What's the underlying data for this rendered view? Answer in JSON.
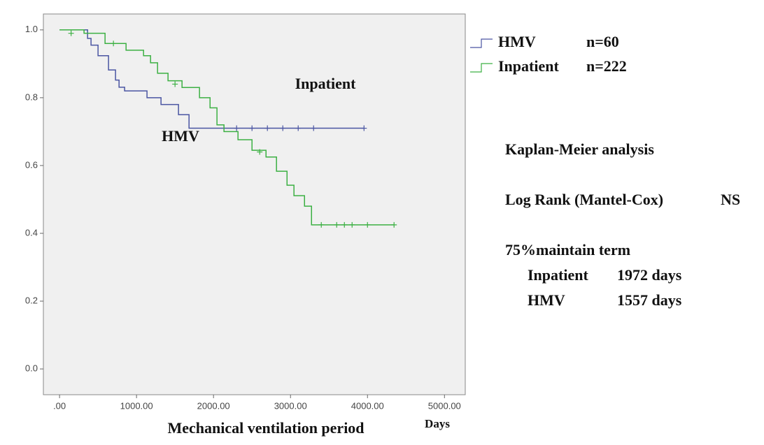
{
  "chart_data": {
    "type": "step",
    "xlabel": "Mechanical ventilation period",
    "xunit": "Days",
    "xlim": [
      -210,
      5270
    ],
    "ylim": [
      -0.076,
      1.047
    ],
    "xticks": [
      {
        "value": 0,
        "label": ".00"
      },
      {
        "value": 1000,
        "label": "1000.00"
      },
      {
        "value": 2000,
        "label": "2000.00"
      },
      {
        "value": 3000,
        "label": "3000.00"
      },
      {
        "value": 4000,
        "label": "4000.00"
      },
      {
        "value": 5000,
        "label": "5000.00"
      }
    ],
    "yticks": [
      {
        "value": 0,
        "label": "0.0"
      },
      0.2,
      0.4,
      0.6,
      0.8,
      {
        "value": 1,
        "label": "1.0"
      }
    ],
    "annotations": [
      "Inpatient",
      "HMV"
    ],
    "series": [
      {
        "name": "HMV",
        "n_label": "n=60",
        "color": "#4a55a2",
        "x": [
          0,
          364,
          409,
          500,
          636,
          727,
          773,
          845,
          1136,
          1318,
          1545,
          1682,
          3955
        ],
        "values": [
          1.0,
          0.975,
          0.955,
          0.924,
          0.882,
          0.852,
          0.831,
          0.82,
          0.8,
          0.78,
          0.75,
          0.71,
          0.71
        ],
        "censored": {
          "x": [
            2300,
            2500,
            2700,
            2900,
            3100,
            3300,
            3955
          ],
          "values": [
            0.71,
            0.71,
            0.71,
            0.71,
            0.71,
            0.71,
            0.71
          ]
        }
      },
      {
        "name": "Inpatient",
        "n_label": "n=222",
        "color": "#3cb043",
        "x": [
          0,
          318,
          591,
          864,
          1091,
          1182,
          1273,
          1409,
          1591,
          1818,
          1955,
          2045,
          2136,
          2318,
          2500,
          2682,
          2818,
          2955,
          3045,
          3182,
          3273,
          4345
        ],
        "values": [
          1.0,
          0.99,
          0.96,
          0.94,
          0.924,
          0.903,
          0.872,
          0.85,
          0.83,
          0.8,
          0.77,
          0.72,
          0.7,
          0.676,
          0.645,
          0.625,
          0.583,
          0.542,
          0.511,
          0.48,
          0.425,
          0.425
        ],
        "censored": {
          "x": [
            150,
            700,
            1500,
            2600,
            3400,
            3600,
            3700,
            3800,
            4000,
            4345
          ],
          "values": [
            0.99,
            0.96,
            0.84,
            0.64,
            0.425,
            0.425,
            0.425,
            0.425,
            0.425,
            0.425
          ]
        }
      }
    ]
  },
  "notes": {
    "title": "Kaplan-Meier analysis",
    "test": "Log Rank (Mantel-Cox)",
    "result": "NS",
    "term_title": "75%maintain term",
    "rows": [
      [
        "Inpatient",
        "1972 days"
      ],
      [
        "HMV",
        "1557 days"
      ]
    ]
  }
}
